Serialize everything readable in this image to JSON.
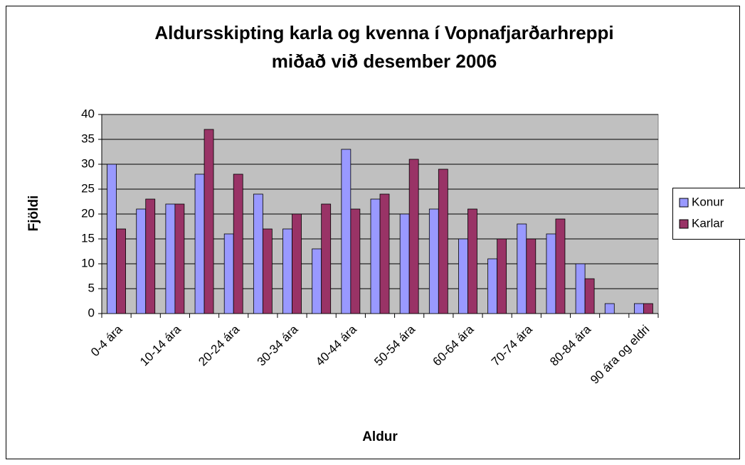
{
  "chart_data": {
    "type": "bar",
    "title": [
      "Aldursskipting karla og kvenna í Vopnafjarðarhreppi",
      "miðað við desember 2006"
    ],
    "x_label": "Aldur",
    "y_label": "Fjöldi",
    "categories": [
      "0-4 ára",
      null,
      "10-14 ára",
      null,
      "20-24 ára",
      null,
      "30-34 ára",
      null,
      "40-44 ára",
      null,
      "50-54 ára",
      null,
      "60-64 ára",
      null,
      "70-74 ára",
      null,
      "80-84 ára",
      null,
      "90 ára og eldri"
    ],
    "series": [
      {
        "name": "Konur",
        "color": "#9999ff",
        "values": [
          30,
          21,
          22,
          28,
          16,
          24,
          17,
          13,
          33,
          23,
          20,
          21,
          15,
          11,
          18,
          16,
          10,
          2,
          2
        ]
      },
      {
        "name": "Karlar",
        "color": "#993366",
        "values": [
          17,
          23,
          22,
          37,
          28,
          17,
          20,
          22,
          21,
          24,
          31,
          29,
          21,
          15,
          15,
          19,
          7,
          0,
          2
        ]
      }
    ],
    "ylim": [
      0,
      40
    ],
    "yticks": [
      0,
      5,
      10,
      15,
      20,
      25,
      30,
      35,
      40
    ],
    "grid": true,
    "legend": "right"
  }
}
